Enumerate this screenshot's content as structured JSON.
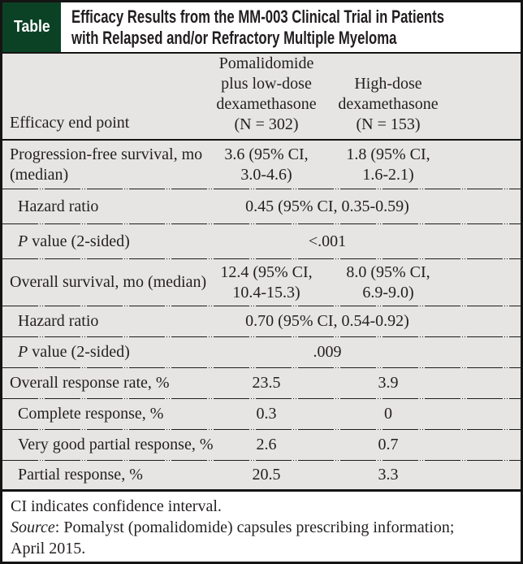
{
  "header": {
    "tag": "Table",
    "title": "Efficacy Results from the MM-003 Clinical Trial in Patients\nwith Relapsed and/or Refractory Multiple Myeloma"
  },
  "columns": {
    "endpoint": "Efficacy end point",
    "col2": "Pomalidomide\nplus low-dose\ndexamethasone\n(N = 302)",
    "col3": "High-dose\ndexamethasone\n(N = 153)"
  },
  "rows": [
    {
      "label": "Progression-free survival, mo\n(median)",
      "col2": "3.6 (95% CI,\n3.0-4.6)",
      "col3": "1.8 (95% CI,\n1.6-2.1)"
    },
    {
      "label": "Hazard ratio",
      "span": "0.45 (95% CI, 0.35-0.59)"
    },
    {
      "label_italic": "P",
      "label": " value (2-sided)",
      "span": "<.001"
    },
    {
      "label": "Overall survival, mo (median)",
      "col2": "12.4 (95% CI,\n10.4-15.3)",
      "col3": "8.0 (95% CI,\n6.9-9.0)"
    },
    {
      "label": "Hazard ratio",
      "span": "0.70 (95% CI, 0.54-0.92)"
    },
    {
      "label_italic": "P",
      "label": " value (2-sided)",
      "span": ".009"
    },
    {
      "label": "Overall response rate, %",
      "col2": "23.5",
      "col3": "3.9"
    },
    {
      "label": "Complete response, %",
      "col2": "0.3",
      "col3": "0"
    },
    {
      "label": "Very good partial response, %",
      "col2": "2.6",
      "col3": "0.7"
    },
    {
      "label": "Partial response, %",
      "col2": "20.5",
      "col3": "3.3"
    }
  ],
  "footer": {
    "line1": "CI indicates confidence interval.",
    "source_label": "Source",
    "source_text": ": Pomalyst (pomalidomide) capsules prescribing information;\nApril 2015."
  },
  "colors": {
    "tag_green": "#0b4226",
    "table_bg": "#e6e5e3",
    "text": "#231f20",
    "rule": "#141414"
  }
}
